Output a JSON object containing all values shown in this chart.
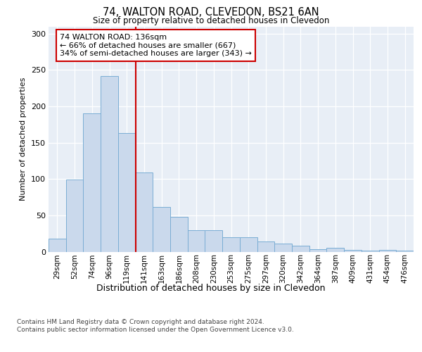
{
  "title": "74, WALTON ROAD, CLEVEDON, BS21 6AN",
  "subtitle": "Size of property relative to detached houses in Clevedon",
  "xlabel": "Distribution of detached houses by size in Clevedon",
  "ylabel": "Number of detached properties",
  "categories": [
    "29sqm",
    "52sqm",
    "74sqm",
    "96sqm",
    "119sqm",
    "141sqm",
    "163sqm",
    "186sqm",
    "208sqm",
    "230sqm",
    "253sqm",
    "275sqm",
    "297sqm",
    "320sqm",
    "342sqm",
    "364sqm",
    "387sqm",
    "409sqm",
    "431sqm",
    "454sqm",
    "476sqm"
  ],
  "values": [
    18,
    99,
    190,
    242,
    163,
    109,
    62,
    48,
    30,
    30,
    20,
    20,
    14,
    11,
    8,
    3,
    5,
    2,
    1,
    2,
    1
  ],
  "bar_color": "#cad9ec",
  "bar_edge_color": "#7aadd4",
  "property_line_x": 4.5,
  "annotation_line1": "74 WALTON ROAD: 136sqm",
  "annotation_line2": "← 66% of detached houses are smaller (667)",
  "annotation_line3": "34% of semi-detached houses are larger (343) →",
  "annotation_box_color": "#cc0000",
  "ylim": [
    0,
    310
  ],
  "yticks": [
    0,
    50,
    100,
    150,
    200,
    250,
    300
  ],
  "background_color": "#e8eef6",
  "grid_color": "#ffffff",
  "footer_line1": "Contains HM Land Registry data © Crown copyright and database right 2024.",
  "footer_line2": "Contains public sector information licensed under the Open Government Licence v3.0."
}
